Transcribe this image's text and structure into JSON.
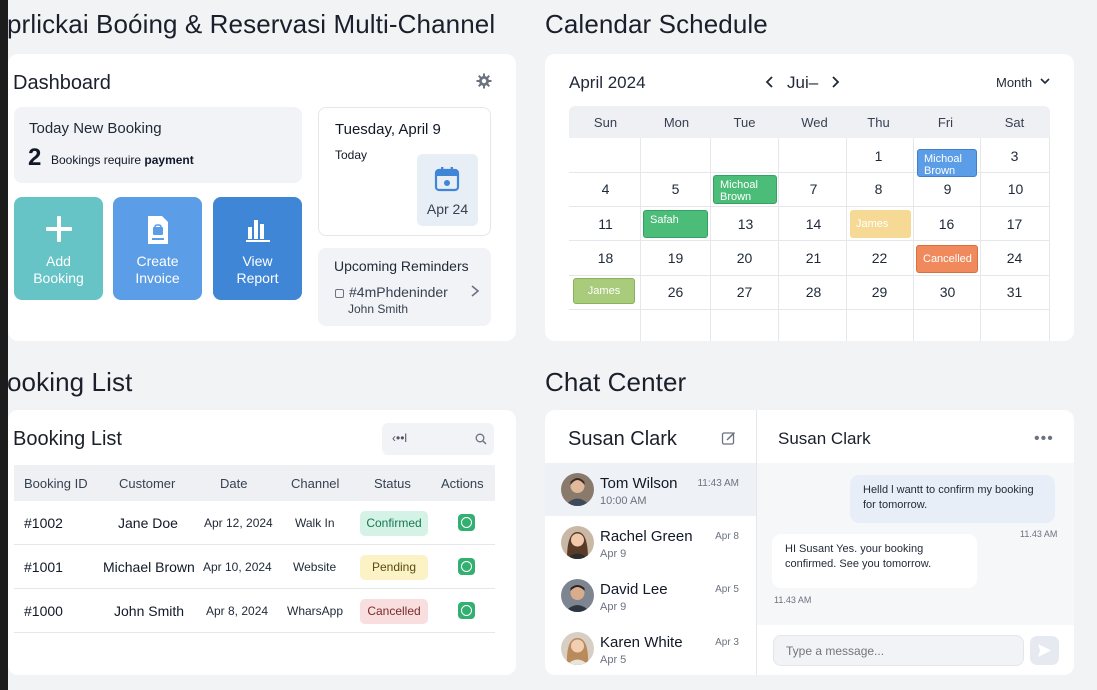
{
  "titles": {
    "app": "prlickai Boóing & Reservasi Multi-Channel",
    "calendar": "Calendar Schedule",
    "booking": "ooking List",
    "chat": "Chat Center"
  },
  "dashboard": {
    "title": "Dashboard",
    "today_label": "Today New Booking",
    "today_count": "2",
    "today_note_prefix": "Bookings require",
    "today_note_bold": "payment",
    "tiles": [
      {
        "label": "Add\nBooking",
        "icon": "plus-icon"
      },
      {
        "label": "Create\nInvoice",
        "icon": "invoice-icon"
      },
      {
        "label": "View\nReport",
        "icon": "bar-chart-icon"
      }
    ],
    "date_title": "Tuesday, April 9",
    "date_sub": "Today",
    "date_chip": "Apr 24",
    "reminders_title": "Upcoming Reminders",
    "reminder_code": "#4mPhdeninder",
    "reminder_person": "John Smith"
  },
  "calendar": {
    "month": "April 2024",
    "nav_label": "Jui–",
    "view": "Month",
    "weekdays": [
      "Sun",
      "Mon",
      "Tue",
      "Wed",
      "Thu",
      "Fri",
      "Sat"
    ],
    "days": [
      [
        "",
        "",
        "",
        "",
        "1",
        "",
        "3"
      ],
      [
        "4",
        "5",
        "",
        "7",
        "8",
        "9",
        "10"
      ],
      [
        "11",
        "",
        "13",
        "14",
        "",
        "16",
        "17"
      ],
      [
        "18",
        "19",
        "20",
        "21",
        "22",
        "",
        "24"
      ],
      [
        "",
        "26",
        "27",
        "28",
        "29",
        "30",
        "31"
      ]
    ],
    "events": [
      {
        "label": "Michoal\nBrown",
        "color": "blue"
      },
      {
        "label": "Michoal\nBrown",
        "color": "green"
      },
      {
        "label": "Safah",
        "color": "green"
      },
      {
        "label": "James",
        "color": "yellow"
      },
      {
        "label": "Cancelled",
        "color": "orange"
      },
      {
        "label": "James",
        "color": "olive"
      }
    ]
  },
  "booking_list": {
    "title": "Booking List",
    "search_value": "‹••l",
    "columns": [
      "Booking ID",
      "Customer",
      "Date",
      "Channel",
      "Status",
      "Actions"
    ],
    "rows": [
      {
        "id": "#1002",
        "customer": "Jane Doe",
        "date": "Apr 12, 2024",
        "channel": "Walk  In",
        "status": "Confirmed"
      },
      {
        "id": "#1001",
        "customer": "Michael Brown",
        "date": "Apr 10, 2024",
        "channel": "Website",
        "status": "Pending"
      },
      {
        "id": "#1000",
        "customer": "John Smith",
        "date": "Apr 8, 2024",
        "channel": "WharsApp",
        "status": "Cancelled"
      }
    ]
  },
  "chat": {
    "list_title": "Susan Clark",
    "conversation_title": "Susan Clark",
    "contacts": [
      {
        "name": "Tom Wilson",
        "sub": "10:00 AM",
        "time": "11:43 AM"
      },
      {
        "name": "Rachel Green",
        "sub": "Apr 9",
        "time": "Apr 8"
      },
      {
        "name": "David Lee",
        "sub": "Apr 9",
        "time": "Apr 5"
      },
      {
        "name": "Karen White",
        "sub": "Apr 5",
        "time": "Apr 3"
      }
    ],
    "messages": [
      {
        "text": "Helld l wantt to confirm my booking for tomorrow.",
        "time": "11.43 AM"
      },
      {
        "text": "HI Susant Yes. your booking confirmed. See you tomorrow.",
        "time": "11.43 AM"
      }
    ],
    "input_placeholder": "Type a message..."
  },
  "colors": {
    "accent_teal": "#66c4c6",
    "accent_blue": "#5b9de6",
    "accent_dark_blue": "#3f86d6",
    "confirmed": "#33b071"
  }
}
